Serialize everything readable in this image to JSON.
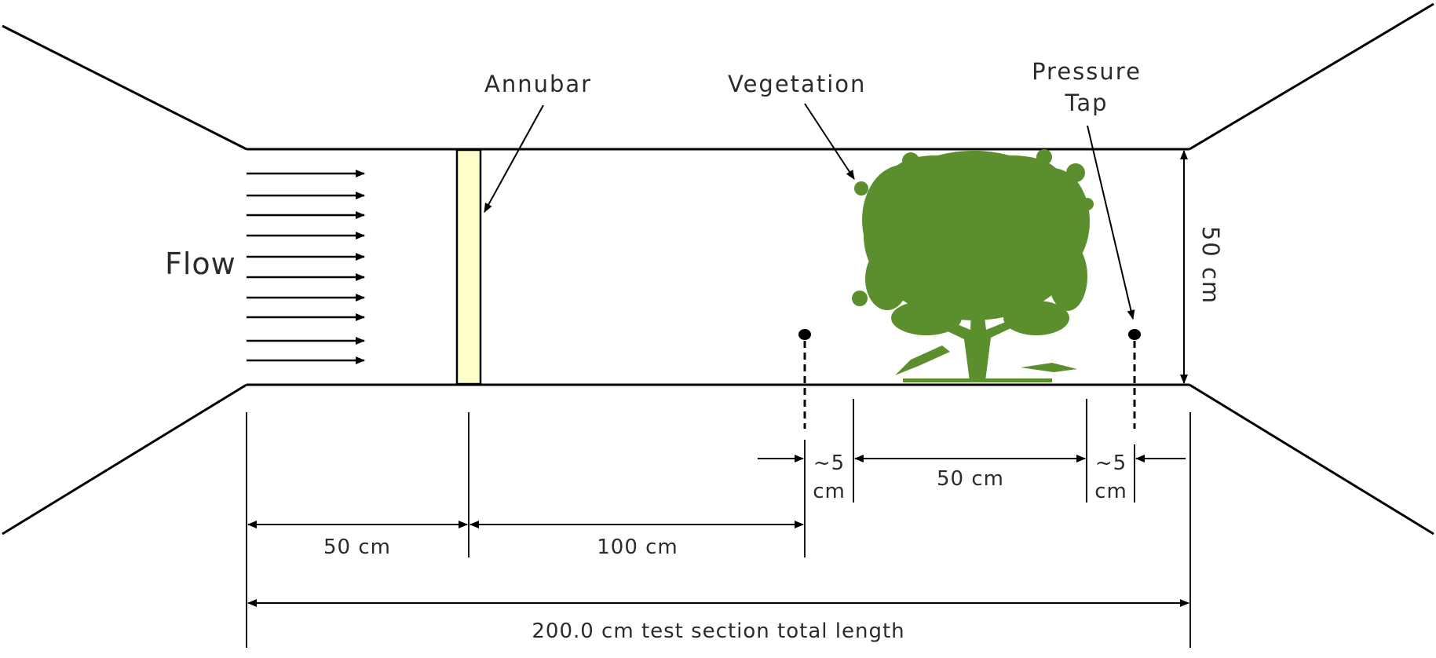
{
  "labels": {
    "flow": "Flow",
    "annubar": "Annubar",
    "vegetation": "Vegetation",
    "pressure_tap_line1": "Pressure",
    "pressure_tap_line2": "Tap",
    "height": "50 cm",
    "dim_inlet": "50 cm",
    "dim_mid": "100 cm",
    "dim_gap_left_1": "~5",
    "dim_gap_left_2": "cm",
    "dim_vegetation": "50 cm",
    "dim_gap_right_1": "~5",
    "dim_gap_right_2": "cm",
    "dim_total": "200.0 cm test section total length"
  },
  "colors": {
    "line": "#000000",
    "text": "#2b2b2b",
    "annubar_fill": "#ffffcc",
    "vegetation": "#5b8f2e"
  },
  "icons": {
    "vegetation": "tree-silhouette",
    "pressure_tap": "filled-dot"
  }
}
